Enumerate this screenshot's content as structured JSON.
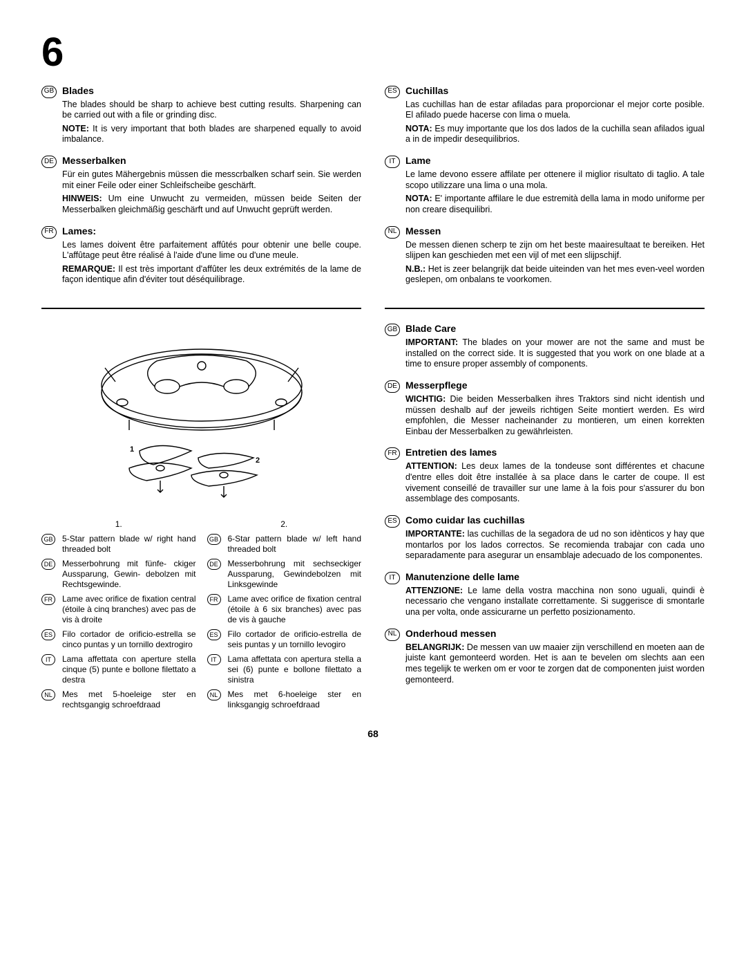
{
  "chapter": "6",
  "pagenum": "68",
  "left_top": [
    {
      "lang": "GB",
      "title": "Blades",
      "paras": [
        "The blades should be sharp to achieve best cutting results. Sharpening can be carried out with a file or grinding disc.",
        "<b>NOTE:</b> It is very important that both blades are sharpened equally to avoid imbalance."
      ]
    },
    {
      "lang": "DE",
      "title": "Messerbalken",
      "paras": [
        "Für ein gutes Mähergebnis müssen die messcrbalken scharf sein. Sie werden mit einer Feile oder einer Schleifscheibe geschärft.",
        "<b>HINWEIS:</b> Um eine Unwucht zu vermeiden, müssen beide Seiten der Messerbalken gleichmäßig geschärft und auf Unwucht geprüft werden."
      ]
    },
    {
      "lang": "FR",
      "title": "Lames:",
      "paras": [
        "Les lames doivent être parfaitement affûtés pour obtenir une belle coupe. L'affûtage peut être réalisé à l'aide d'une lime ou d'une meule.",
        "<b>REMARQUE:</b> Il est très important d'affûter les deux extrémités de la lame de façon identique afin d'éviter tout déséquilibrage."
      ]
    }
  ],
  "right_top": [
    {
      "lang": "ES",
      "title": "Cuchillas",
      "paras": [
        "Las cuchillas han de estar afiladas para proporcionar el mejor corte posible. El afilado puede hacerse con lima o muela.",
        "<b>NOTA:</b> Es muy importante que los dos lados de la cuchilla sean afilados igual a in de impedir desequilibrios."
      ]
    },
    {
      "lang": "IT",
      "title": "Lame",
      "paras": [
        "Le lame devono essere affilate per ottenere il miglior risultato di taglio. A tale scopo utilizzare una lima o una mola.",
        "<b>NOTA:</b> E' importante affilare le due estremità della lama in modo uniforme per non creare disequilibri."
      ]
    },
    {
      "lang": "NL",
      "title": "Messen",
      "paras": [
        "De messen dienen scherp te zijn om het beste maairesultaat te bereiken. Het slijpen kan geschieden met een vijl of met een slijpschijf.",
        "<b>N.B.:</b> Het is zeer belangrijk dat beide uiteinden van het mes even-veel worden geslepen, om onbalans te voorkomen."
      ]
    }
  ],
  "right_bottom": [
    {
      "lang": "GB",
      "title": "Blade Care",
      "paras": [
        "<b>IMPORTANT:</b> The blades on your mower are not the same and must be installed on the correct side. It is suggested that you work on one blade at a time to ensure proper assembly of components."
      ]
    },
    {
      "lang": "DE",
      "title": "Messerpflege",
      "paras": [
        "<b>WICHTIG:</b> Die beiden Messerbalken ihres Traktors sind nicht identish und müssen deshalb auf der jeweils richtigen Seite montiert werden. Es wird empfohlen, die Messer nacheinander zu montieren, um einen korrekten Einbau der Messerbalken zu gewährleisten."
      ]
    },
    {
      "lang": "FR",
      "title": "Entretien des lames",
      "paras": [
        "<b>ATTENTION:</b> Les deux lames de la tondeuse sont différentes et chacune d'entre elles doit être installée à sa place dans le carter de coupe. Il est vivement conseillé de travailler sur une lame à la fois pour s'assurer du bon assemblage des composants."
      ]
    },
    {
      "lang": "ES",
      "title": "Como cuidar las cuchillas",
      "paras": [
        "<b>IMPORTANTE:</b> las cuchillas de la segadora de ud no son idènticos y hay que montarlos por los lados correctos. Se recomienda trabajar con cada uno separadamente para asegurar un ensamblaje adecuado de los componentes."
      ]
    },
    {
      "lang": "IT",
      "title": "Manutenzione delle lame",
      "paras": [
        "<b>ATTENZIONE:</b> Le lame della vostra macchina non sono uguali, quindi è necessario che vengano installate correttamente. Si suggerisce di smontarle una per volta, onde assicurarne un perfetto posizionamento."
      ]
    },
    {
      "lang": "NL",
      "title": "Onderhoud messen",
      "paras": [
        "<b>BELANGRIJK:</b> De messen van uw maaier zijn verschillend en moeten aan de juiste kant gemonteerd worden. Het is aan te bevelen om slechts aan een mes tegelijk te werken om er voor te zorgen dat de componenten juist worden gemonteerd."
      ]
    }
  ],
  "legend": {
    "head1": "1.",
    "head2": "2.",
    "col1": [
      {
        "lang": "GB",
        "text": "5-Star pattern blade w/ right hand threaded bolt"
      },
      {
        "lang": "DE",
        "text": "Messerbohrung mit fünfe- ckiger Aussparung, Gewin- debolzen mit Rechtsgewinde."
      },
      {
        "lang": "FR",
        "text": "Lame avec orifice de fixation central (étoile à cinq branches) avec pas de vis à droite"
      },
      {
        "lang": "ES",
        "text": "Filo cortador de orificio-estrella se cinco puntas y un tornillo dextrogiro"
      },
      {
        "lang": "IT",
        "text": "Lama affettata con aperture stella cinque (5) punte e bollone filettato a destra"
      },
      {
        "lang": "NL",
        "text": "Mes met 5-hoeleige ster en rechtsgangig schroefdraad"
      }
    ],
    "col2": [
      {
        "lang": "GB",
        "text": "6-Star pattern blade w/ left hand threaded bolt"
      },
      {
        "lang": "DE",
        "text": "Messerbohrung mit sechseckiger Aussparung, Gewindebolzen mit Linksgewinde"
      },
      {
        "lang": "FR",
        "text": "Lame avec orifice de fixation central (étoile à 6 six branches) avec pas de vis à gauche"
      },
      {
        "lang": "ES",
        "text": "Filo cortador de orificio-estrella de seis puntas y un tornillo levogiro"
      },
      {
        "lang": "IT",
        "text": "Lama affettata con apertura stella a sei (6) punte e bollone filettato a sinistra"
      },
      {
        "lang": "NL",
        "text": "Mes met 6-hoeleige ster en linksgangig schroefdraad"
      }
    ]
  },
  "fig_labels": {
    "one": "1",
    "two": "2"
  }
}
